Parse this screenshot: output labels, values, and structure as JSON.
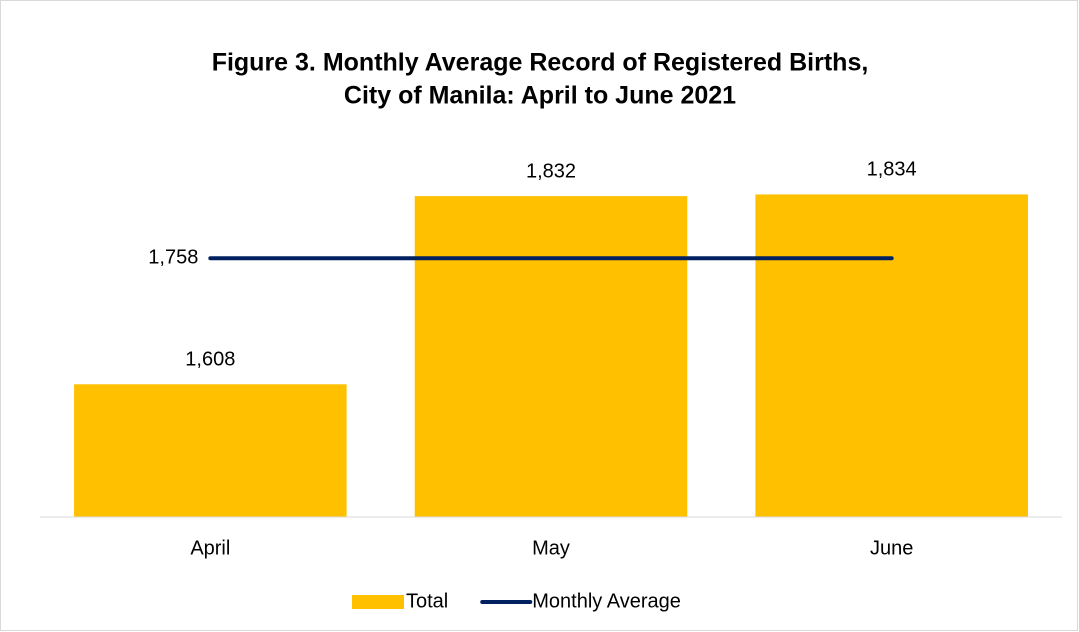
{
  "chart_data": {
    "type": "bar-line",
    "title": [
      "Figure 3. Monthly Average Record of Registered Births,",
      "City of Manila: April to June 2021"
    ],
    "categories": [
      "April",
      "May",
      "June"
    ],
    "series": [
      {
        "name": "Total",
        "type": "bar",
        "color": "#ffc000",
        "values": [
          1608,
          1832,
          1834
        ],
        "value_labels": [
          "1,608",
          "1,832",
          "1,834"
        ]
      },
      {
        "name": "Monthly Average",
        "type": "line",
        "color": "#002060",
        "values": [
          1758,
          1758,
          1758
        ],
        "value_labels": [
          "1,758",
          null,
          null
        ]
      }
    ],
    "ylim": [
      1450,
      1900
    ],
    "legend": "bottom"
  }
}
